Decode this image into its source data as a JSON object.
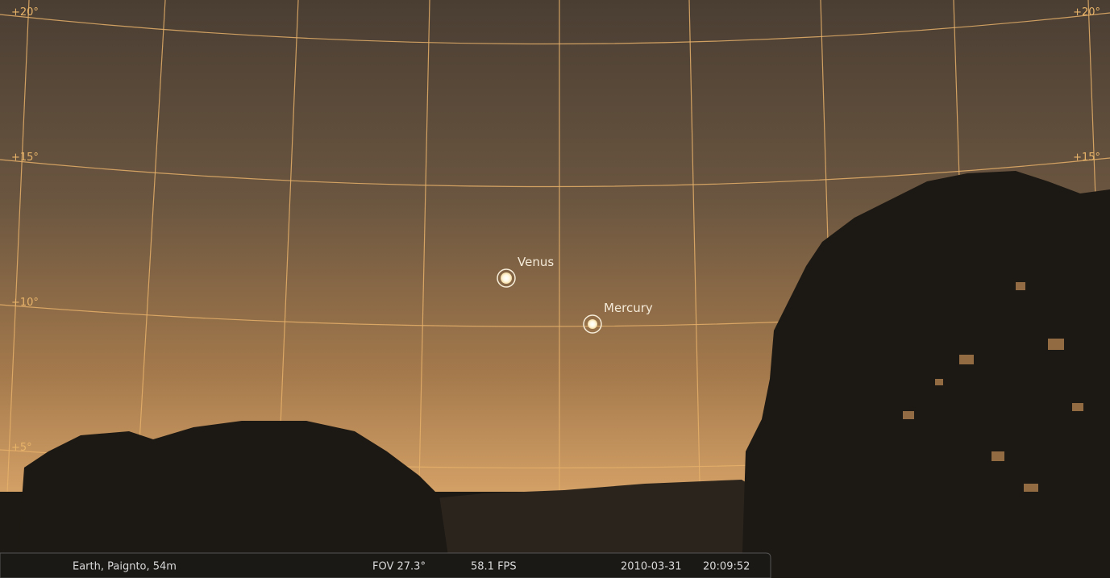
{
  "grid_labels": {
    "left": [
      "+20°",
      "+15°",
      "+10°",
      "+5°"
    ],
    "right": [
      "+20°",
      "+15°"
    ]
  },
  "objects": [
    {
      "label": "Venus"
    },
    {
      "label": "Mercury"
    }
  ],
  "status_bar": {
    "location": "Earth, Paignto, 54m",
    "fov": "FOV 27.3°",
    "fps": "58.1 FPS",
    "date": "2010-03-31",
    "time": "20:09:52"
  }
}
